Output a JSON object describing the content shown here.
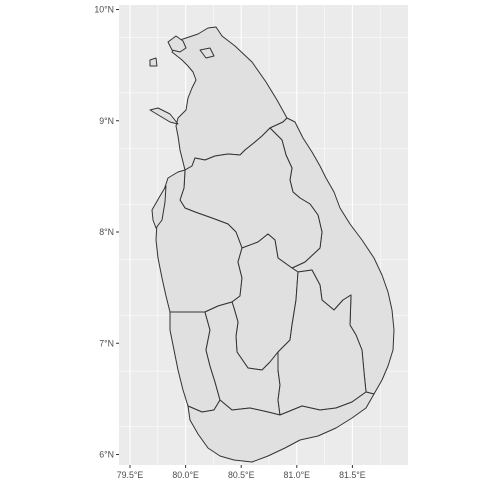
{
  "map": {
    "type": "choropleth-outline",
    "region": "Sri Lanka provinces",
    "colors": {
      "panel_background": "#ebebeb",
      "major_grid": "#ffffff",
      "land_fill": "#e0e0e0",
      "boundary_stroke": "#333333",
      "tick_text": "#4d4d4d"
    },
    "x_ticks": [
      {
        "value": 79.5,
        "label": "79.5°E"
      },
      {
        "value": 80.0,
        "label": "80.0°E"
      },
      {
        "value": 80.5,
        "label": "80.5°E"
      },
      {
        "value": 81.0,
        "label": "81.0°E"
      },
      {
        "value": 81.5,
        "label": "81.5°E"
      }
    ],
    "y_ticks": [
      {
        "value": 10,
        "label": "10°N"
      },
      {
        "value": 9,
        "label": "9°N"
      },
      {
        "value": 8,
        "label": "8°N"
      },
      {
        "value": 7,
        "label": "7°N"
      },
      {
        "value": 6,
        "label": "6°N"
      }
    ],
    "grid": true
  }
}
